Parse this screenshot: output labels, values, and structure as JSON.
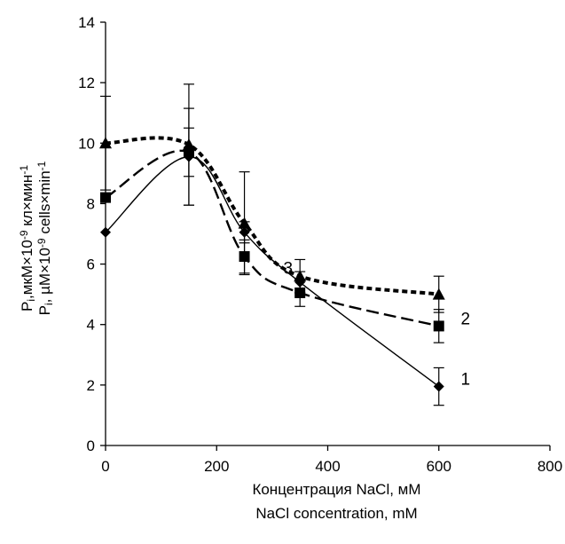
{
  "chart_data": {
    "type": "line",
    "xlabel_lines": [
      "Концентрация NaCl, мМ",
      "NaCl concentration, mM"
    ],
    "ylabel_lines": [
      {
        "base": "P",
        "sub": "i",
        "text": ",мкМ×10",
        "sup": "-9",
        "text2": " кл×мин",
        "sup2": "-1"
      },
      {
        "base": "P",
        "sub": "i",
        "text": ", µM×10",
        "sup": "-9",
        "text2": " cells×min",
        "sup2": "-1"
      }
    ],
    "xlim": [
      0,
      800
    ],
    "ylim": [
      0,
      14
    ],
    "x_ticks": [
      0,
      200,
      400,
      600,
      800
    ],
    "y_ticks": [
      0,
      2,
      4,
      6,
      8,
      10,
      12,
      14
    ],
    "grid": false,
    "series": [
      {
        "label": "1",
        "marker": "diamond",
        "style": "solid",
        "color": "#000000",
        "points": [
          {
            "x": 0,
            "y": 7.05,
            "err": 0
          },
          {
            "x": 150,
            "y": 9.55,
            "err": 1.6
          },
          {
            "x": 250,
            "y": 7.05,
            "err": 0.35
          },
          {
            "x": 350,
            "y": 5.4,
            "err": 0.35
          },
          {
            "x": 600,
            "y": 1.95,
            "err": 0.62
          }
        ]
      },
      {
        "label": "2",
        "marker": "square",
        "style": "dashed",
        "color": "#000000",
        "points": [
          {
            "x": 0,
            "y": 8.2,
            "err": 0
          },
          {
            "x": 150,
            "y": 9.7,
            "err": 0.8
          },
          {
            "x": 250,
            "y": 6.25,
            "err": 0.55
          },
          {
            "x": 350,
            "y": 5.05,
            "err": 0.45
          },
          {
            "x": 600,
            "y": 3.95,
            "err": 0.55
          }
        ]
      },
      {
        "label": "3",
        "marker": "triangle",
        "style": "dotted",
        "color": "#000000",
        "points": [
          {
            "x": 0,
            "y": 10.0,
            "err": 1.55
          },
          {
            "x": 150,
            "y": 9.95,
            "err": 2.0
          },
          {
            "x": 250,
            "y": 7.35,
            "err": 1.7
          },
          {
            "x": 350,
            "y": 5.6,
            "err": 0.55
          },
          {
            "x": 600,
            "y": 5.0,
            "err": 0.6
          }
        ]
      }
    ]
  }
}
